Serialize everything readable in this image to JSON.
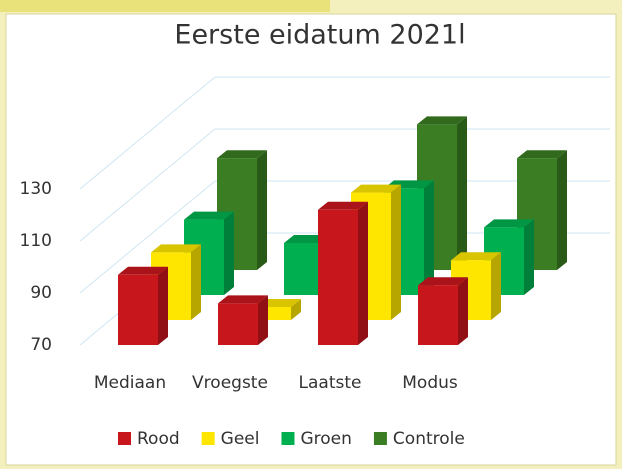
{
  "chart_data": {
    "type": "bar3d",
    "title": "Eerste eidatum 2021l",
    "categories": [
      "Mediaan",
      "Vroegste",
      "Laatste",
      "Modus"
    ],
    "series": [
      {
        "name": "Rood",
        "color": "#c8161d",
        "values": [
          97,
          86,
          122,
          93
        ]
      },
      {
        "name": "Geel",
        "color": "#ffe600",
        "values": [
          96,
          75,
          119,
          93
        ]
      },
      {
        "name": "Groen",
        "color": "#00b050",
        "values": [
          99,
          90,
          111,
          96
        ]
      },
      {
        "name": "Controle",
        "color": "#3a7d22",
        "values": [
          113,
          null,
          126,
          113
        ]
      }
    ],
    "ylim": [
      70,
      150
    ],
    "yticks": [
      70,
      90,
      110,
      130
    ],
    "grid": true,
    "legend": "bottom"
  }
}
